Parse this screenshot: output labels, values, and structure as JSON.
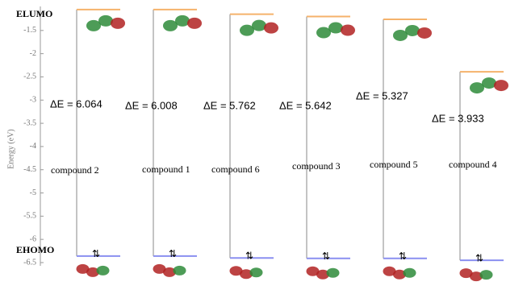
{
  "chart_data": {
    "type": "energy-level",
    "y_label": "Energy (eV)",
    "categories": [
      "compound 2",
      "compound 1",
      "compound 6",
      "compound 3",
      "compound 5",
      "compound 4"
    ],
    "series": [
      {
        "name": "ELUMO",
        "color": "#f5b26b",
        "values": [
          -1.05,
          -1.05,
          -1.15,
          -1.2,
          -1.26,
          -2.39
        ]
      },
      {
        "name": "EHOMO",
        "color": "#8a8ff0",
        "values": [
          -6.36,
          -6.36,
          -6.4,
          -6.41,
          -6.41,
          -6.45
        ]
      }
    ],
    "gaps": [
      6.064,
      6.008,
      5.762,
      5.642,
      5.327,
      3.933
    ],
    "value_labels": [
      "ΔE = 6.064",
      "ΔE = 6.008",
      "ΔE = 5.762",
      "ΔE = 5.642",
      "ΔE = 5.327",
      "ΔE = 3.933"
    ],
    "ylim": [
      -6.57,
      -1.0
    ],
    "yticks": [
      -1.5,
      -2,
      -2.5,
      -3,
      -3.5,
      -4,
      -4.5,
      -5,
      -5.5,
      -6,
      -6.5
    ]
  }
}
